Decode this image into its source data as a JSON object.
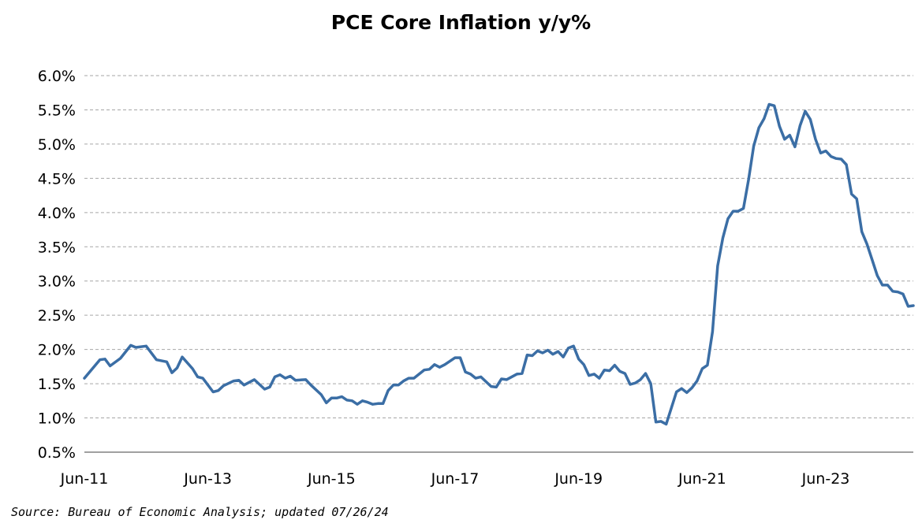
{
  "chart_data": {
    "type": "line",
    "title": "PCE Core Inflation y/y%",
    "xlabel": "",
    "ylabel": "",
    "ylim": [
      0.5,
      6.0
    ],
    "yticks": [
      "0.5%",
      "1.0%",
      "1.5%",
      "2.0%",
      "2.5%",
      "3.0%",
      "3.5%",
      "4.0%",
      "4.5%",
      "5.0%",
      "5.5%",
      "6.0%"
    ],
    "xticks": [
      "Jun-11",
      "Jun-13",
      "Jun-15",
      "Jun-17",
      "Jun-19",
      "Jun-21",
      "Jun-23"
    ],
    "grid": "horizontal dashed",
    "legend": "none",
    "series": [
      {
        "color": "#3b6ea5",
        "points": [
          [
            "2011-06",
            1.58
          ],
          [
            "2011-09",
            1.85
          ],
          [
            "2011-10",
            1.86
          ],
          [
            "2011-11",
            1.76
          ],
          [
            "2012-01",
            1.87
          ],
          [
            "2012-03",
            2.06
          ],
          [
            "2012-04",
            2.03
          ],
          [
            "2012-06",
            2.05
          ],
          [
            "2012-08",
            1.85
          ],
          [
            "2012-10",
            1.82
          ],
          [
            "2012-11",
            1.66
          ],
          [
            "2012-12",
            1.73
          ],
          [
            "2013-01",
            1.89
          ],
          [
            "2013-03",
            1.72
          ],
          [
            "2013-04",
            1.6
          ],
          [
            "2013-05",
            1.58
          ],
          [
            "2013-07",
            1.38
          ],
          [
            "2013-08",
            1.4
          ],
          [
            "2013-09",
            1.47
          ],
          [
            "2013-11",
            1.54
          ],
          [
            "2013-12",
            1.55
          ],
          [
            "2014-01",
            1.48
          ],
          [
            "2014-03",
            1.56
          ],
          [
            "2014-05",
            1.42
          ],
          [
            "2014-06",
            1.45
          ],
          [
            "2014-07",
            1.6
          ],
          [
            "2014-08",
            1.63
          ],
          [
            "2014-09",
            1.58
          ],
          [
            "2014-10",
            1.61
          ],
          [
            "2014-11",
            1.55
          ],
          [
            "2015-01",
            1.56
          ],
          [
            "2015-02",
            1.48
          ],
          [
            "2015-04",
            1.34
          ],
          [
            "2015-05",
            1.22
          ],
          [
            "2015-06",
            1.29
          ],
          [
            "2015-07",
            1.29
          ],
          [
            "2015-08",
            1.31
          ],
          [
            "2015-09",
            1.26
          ],
          [
            "2015-10",
            1.25
          ],
          [
            "2015-11",
            1.2
          ],
          [
            "2015-12",
            1.25
          ],
          [
            "2016-01",
            1.23
          ],
          [
            "2016-02",
            1.2
          ],
          [
            "2016-03",
            1.21
          ],
          [
            "2016-04",
            1.21
          ],
          [
            "2016-05",
            1.4
          ],
          [
            "2016-06",
            1.48
          ],
          [
            "2016-07",
            1.48
          ],
          [
            "2016-08",
            1.54
          ],
          [
            "2016-09",
            1.58
          ],
          [
            "2016-10",
            1.58
          ],
          [
            "2016-12",
            1.7
          ],
          [
            "2017-01",
            1.71
          ],
          [
            "2017-02",
            1.78
          ],
          [
            "2017-03",
            1.74
          ],
          [
            "2017-04",
            1.78
          ],
          [
            "2017-06",
            1.88
          ],
          [
            "2017-07",
            1.88
          ],
          [
            "2017-08",
            1.67
          ],
          [
            "2017-09",
            1.64
          ],
          [
            "2017-10",
            1.58
          ],
          [
            "2017-11",
            1.6
          ],
          [
            "2018-01",
            1.46
          ],
          [
            "2018-02",
            1.45
          ],
          [
            "2018-03",
            1.57
          ],
          [
            "2018-04",
            1.56
          ],
          [
            "2018-06",
            1.64
          ],
          [
            "2018-07",
            1.65
          ],
          [
            "2018-08",
            1.92
          ],
          [
            "2018-09",
            1.91
          ],
          [
            "2018-10",
            1.98
          ],
          [
            "2018-11",
            1.95
          ],
          [
            "2018-12",
            1.99
          ],
          [
            "2019-01",
            1.93
          ],
          [
            "2019-02",
            1.97
          ],
          [
            "2019-03",
            1.89
          ],
          [
            "2019-04",
            2.02
          ],
          [
            "2019-05",
            2.05
          ],
          [
            "2019-06",
            1.86
          ],
          [
            "2019-07",
            1.78
          ],
          [
            "2019-08",
            1.62
          ],
          [
            "2019-09",
            1.64
          ],
          [
            "2019-10",
            1.58
          ],
          [
            "2019-11",
            1.7
          ],
          [
            "2019-12",
            1.69
          ],
          [
            "2020-01",
            1.77
          ],
          [
            "2020-02",
            1.68
          ],
          [
            "2020-03",
            1.65
          ],
          [
            "2020-04",
            1.49
          ],
          [
            "2020-05",
            1.51
          ],
          [
            "2020-06",
            1.56
          ],
          [
            "2020-07",
            1.65
          ],
          [
            "2020-08",
            1.5
          ],
          [
            "2020-09",
            0.94
          ],
          [
            "2020-10",
            0.95
          ],
          [
            "2020-11",
            0.91
          ],
          [
            "2021-01",
            1.38
          ],
          [
            "2021-02",
            1.43
          ],
          [
            "2021-03",
            1.37
          ],
          [
            "2021-04",
            1.44
          ],
          [
            "2021-05",
            1.54
          ],
          [
            "2021-06",
            1.72
          ],
          [
            "2021-07",
            1.77
          ],
          [
            "2021-08",
            2.26
          ],
          [
            "2021-09",
            3.22
          ],
          [
            "2021-10",
            3.63
          ],
          [
            "2021-11",
            3.91
          ],
          [
            "2021-12",
            4.02
          ],
          [
            "2022-01",
            4.02
          ],
          [
            "2022-02",
            4.06
          ],
          [
            "2022-03",
            4.48
          ],
          [
            "2022-04",
            4.97
          ],
          [
            "2022-05",
            5.24
          ],
          [
            "2022-06",
            5.37
          ],
          [
            "2022-07",
            5.58
          ],
          [
            "2022-08",
            5.56
          ],
          [
            "2022-09",
            5.26
          ],
          [
            "2022-10",
            5.07
          ],
          [
            "2022-11",
            5.13
          ],
          [
            "2022-12",
            4.96
          ],
          [
            "2023-01",
            5.27
          ],
          [
            "2023-02",
            5.48
          ],
          [
            "2023-03",
            5.36
          ],
          [
            "2023-04",
            5.07
          ],
          [
            "2023-05",
            4.87
          ],
          [
            "2023-06",
            4.9
          ],
          [
            "2023-07",
            4.82
          ],
          [
            "2023-08",
            4.79
          ],
          [
            "2023-09",
            4.78
          ],
          [
            "2023-10",
            4.7
          ],
          [
            "2023-11",
            4.27
          ],
          [
            "2023-12",
            4.2
          ],
          [
            "2024-01",
            3.72
          ],
          [
            "2024-02",
            3.54
          ],
          [
            "2024-03",
            3.31
          ],
          [
            "2024-04",
            3.08
          ],
          [
            "2024-05",
            2.94
          ],
          [
            "2024-06",
            2.94
          ],
          [
            "2024-07",
            2.85
          ],
          [
            "2024-08",
            2.84
          ],
          [
            "2024-09",
            2.81
          ],
          [
            "2024-10",
            2.63
          ],
          [
            "2024-11",
            2.64
          ]
        ]
      }
    ]
  },
  "source": "Source: Bureau of Economic Analysis; updated 07/26/24"
}
